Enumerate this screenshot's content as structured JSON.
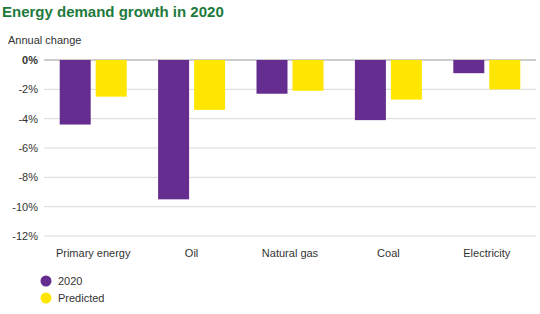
{
  "chart_data": {
    "type": "bar",
    "title": "Energy demand growth in 2020",
    "y_label": "Annual change",
    "categories": [
      "Primary energy",
      "Oil",
      "Natural gas",
      "Coal",
      "Electricity"
    ],
    "series": [
      {
        "name": "2020",
        "color": "#662d91",
        "values": [
          -4.4,
          -9.5,
          -2.3,
          -4.1,
          -0.9
        ]
      },
      {
        "name": "Predicted",
        "color": "#ffe600",
        "values": [
          -2.5,
          -3.4,
          -2.1,
          -2.7,
          -2.0
        ]
      }
    ],
    "ylim": [
      -12,
      0
    ],
    "yticks": [
      {
        "value": 0,
        "label": "0%"
      },
      {
        "value": -2,
        "label": "-2%"
      },
      {
        "value": -4,
        "label": "-4%"
      },
      {
        "value": -6,
        "label": "-6%"
      },
      {
        "value": -8,
        "label": "-8%"
      },
      {
        "value": -10,
        "label": "-10%"
      },
      {
        "value": -12,
        "label": "-12%"
      }
    ],
    "grid": true,
    "legend": "bottom-left"
  }
}
